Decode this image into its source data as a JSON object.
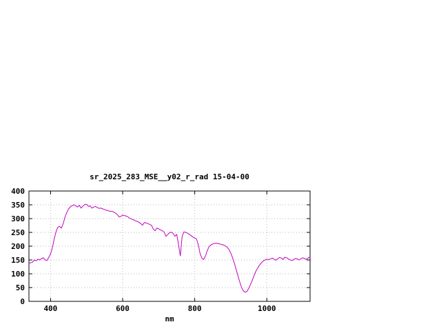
{
  "page": {
    "background": "#ffffff"
  },
  "chart_data": {
    "type": "line",
    "title": "sr_2025_283_MSE__y02_r_rad 15-04-00",
    "xlabel": "nm",
    "ylabel": "",
    "xlim": [
      340,
      1120
    ],
    "ylim": [
      0,
      400
    ],
    "xticks": [
      400,
      600,
      800,
      1000
    ],
    "yticks": [
      0,
      50,
      100,
      150,
      200,
      250,
      300,
      350,
      400
    ],
    "grid": true,
    "legend": "none",
    "line_color": "#c000c0",
    "border_color": "#000000",
    "grid_color": "#b5b5b5",
    "series": [
      {
        "x_start": 340,
        "x_step": 5,
        "values": [
          138,
          140,
          142,
          150,
          147,
          153,
          150,
          155,
          158,
          150,
          148,
          160,
          172,
          195,
          225,
          252,
          268,
          272,
          265,
          282,
          305,
          322,
          335,
          343,
          347,
          350,
          346,
          342,
          348,
          338,
          346,
          351,
          352,
          344,
          346,
          338,
          342,
          344,
          340,
          337,
          338,
          335,
          333,
          330,
          329,
          326,
          327,
          324,
          320,
          315,
          306,
          308,
          313,
          311,
          309,
          306,
          301,
          298,
          296,
          292,
          290,
          287,
          282,
          276,
          286,
          284,
          282,
          279,
          276,
          262,
          256,
          266,
          263,
          259,
          256,
          251,
          236,
          242,
          249,
          251,
          246,
          236,
          243,
          205,
          165,
          235,
          252,
          250,
          247,
          243,
          238,
          233,
          230,
          226,
          205,
          172,
          156,
          152,
          165,
          185,
          198,
          205,
          208,
          210,
          211,
          209,
          208,
          206,
          204,
          201,
          196,
          188,
          175,
          158,
          138,
          115,
          92,
          70,
          50,
          38,
          33,
          36,
          48,
          62,
          78,
          95,
          110,
          122,
          132,
          140,
          146,
          150,
          153,
          151,
          154,
          157,
          153,
          149,
          154,
          159,
          157,
          152,
          160,
          158,
          154,
          150,
          148,
          152,
          156,
          153,
          150,
          155,
          158,
          155,
          152,
          157,
          162
        ]
      }
    ]
  }
}
